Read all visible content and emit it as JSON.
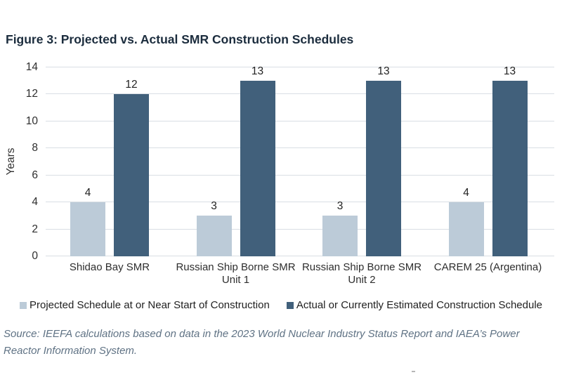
{
  "figure": {
    "title": "Figure 3: Projected vs. Actual SMR Construction Schedules",
    "source": "Source: IEEFA calculations based on data in the 2023 World Nuclear Industry Status Report and IAEA’s Power Reactor Information System."
  },
  "chart_data": {
    "type": "bar",
    "title": "Figure 3: Projected vs. Actual SMR Construction Schedules",
    "xlabel": "",
    "ylabel": "Years",
    "ylim": [
      0,
      14
    ],
    "yticks": [
      0,
      2,
      4,
      6,
      8,
      10,
      12,
      14
    ],
    "grid": true,
    "data_labels": true,
    "legend_position": "bottom",
    "categories": [
      "Shidao Bay SMR",
      "Russian Ship Borne SMR\nUnit 1",
      "Russian Ship Borne SMR\nUnit 2",
      "CAREM 25 (Argentina)"
    ],
    "series": [
      {
        "name": "Projected Schedule at or Near Start of Construction",
        "color": "#bccbd8",
        "values": [
          4,
          3,
          3,
          4
        ]
      },
      {
        "name": "Actual or Currently Estimated Construction Schedule",
        "color": "#41607b",
        "values": [
          12,
          13,
          13,
          13
        ]
      }
    ]
  },
  "colors": {
    "background": "#ffffff",
    "title_text": "#1b2c3d",
    "axis_text": "#2e2e2e",
    "gridline": "#d9dee4",
    "source_text": "#5f7284",
    "projected_bar": "#bccbd8",
    "actual_bar": "#41607b"
  }
}
